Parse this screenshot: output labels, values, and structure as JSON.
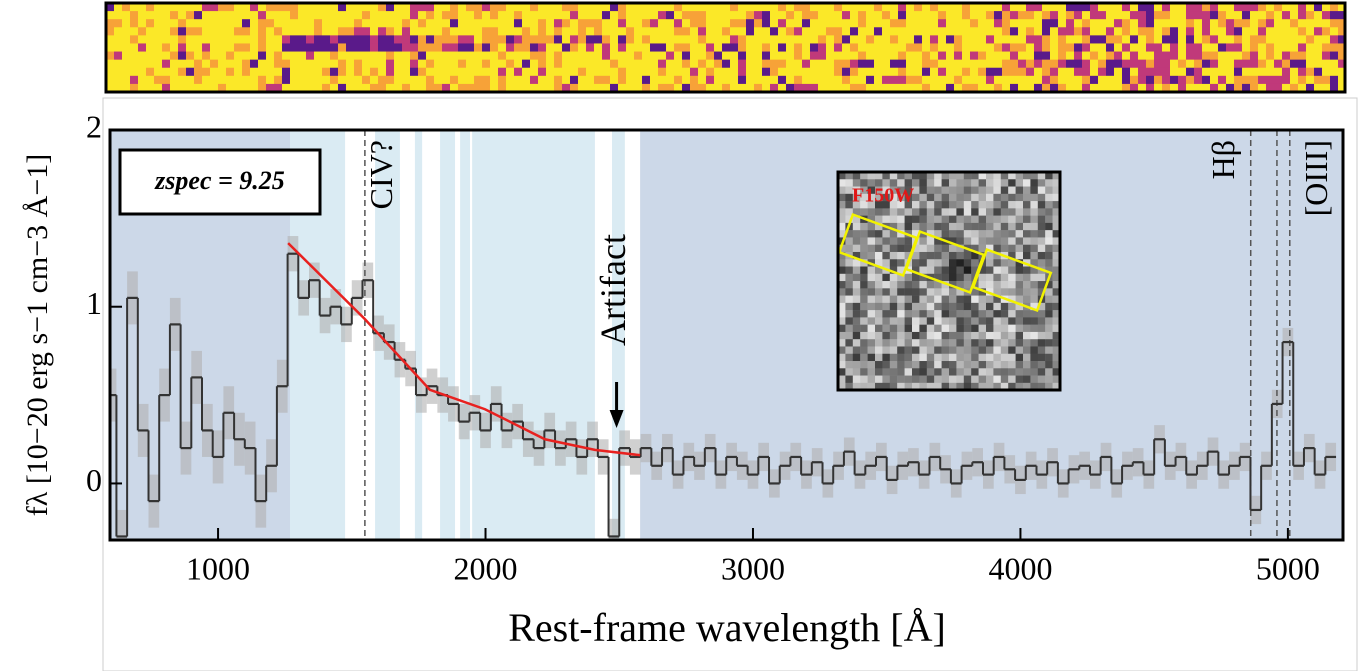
{
  "chart_data": {
    "type": "step",
    "xlabel": "Rest-frame wavelength [Å]",
    "ylabel": "fλ [10−20 erg s−1 cm−3 Å−1]",
    "xlim": [
      596,
      5206
    ],
    "ylim": [
      -0.32,
      2
    ],
    "xticks": [
      1000,
      2000,
      3000,
      4000,
      5000
    ],
    "yticks": [
      0,
      1,
      2
    ],
    "color": "#333333",
    "error_color": "#b0b0b0",
    "x": [
      600,
      640,
      680,
      720,
      760,
      800,
      840,
      880,
      920,
      960,
      1000,
      1040,
      1080,
      1120,
      1160,
      1200,
      1240,
      1280,
      1320,
      1360,
      1400,
      1440,
      1480,
      1520,
      1560,
      1600,
      1640,
      1680,
      1720,
      1760,
      1800,
      1840,
      1880,
      1920,
      1960,
      2000,
      2040,
      2080,
      2120,
      2160,
      2200,
      2240,
      2280,
      2320,
      2360,
      2400,
      2440,
      2480,
      2520,
      2560,
      2600,
      2640,
      2680,
      2720,
      2760,
      2800,
      2840,
      2880,
      2920,
      2960,
      3000,
      3040,
      3080,
      3120,
      3160,
      3200,
      3240,
      3280,
      3320,
      3360,
      3400,
      3440,
      3480,
      3520,
      3560,
      3600,
      3640,
      3680,
      3720,
      3760,
      3800,
      3840,
      3880,
      3920,
      3960,
      4000,
      4040,
      4080,
      4120,
      4160,
      4200,
      4240,
      4280,
      4320,
      4360,
      4400,
      4440,
      4480,
      4520,
      4560,
      4600,
      4640,
      4680,
      4720,
      4760,
      4800,
      4840,
      4880,
      4920,
      4960,
      5000,
      5040,
      5080,
      5120,
      5160
    ],
    "values": [
      0.5,
      -0.3,
      1.05,
      0.3,
      -0.1,
      0.5,
      0.9,
      0.2,
      0.6,
      0.3,
      0.15,
      0.4,
      0.25,
      0.2,
      -0.1,
      0.1,
      0.55,
      1.3,
      1.05,
      1.15,
      0.95,
      1.0,
      0.9,
      1.05,
      1.15,
      0.85,
      0.8,
      0.7,
      0.65,
      0.5,
      0.55,
      0.5,
      0.45,
      0.35,
      0.4,
      0.3,
      0.45,
      0.3,
      0.35,
      0.25,
      0.2,
      0.3,
      0.2,
      0.25,
      0.15,
      0.25,
      0.15,
      -0.3,
      0.2,
      0.15,
      0.2,
      0.1,
      0.2,
      0.05,
      0.15,
      0.1,
      0.2,
      0.05,
      0.15,
      0.1,
      0.05,
      0.15,
      0.0,
      0.1,
      0.15,
      0.05,
      0.12,
      0.0,
      0.1,
      0.18,
      0.05,
      0.1,
      0.15,
      0.02,
      0.1,
      0.12,
      0.05,
      0.15,
      0.08,
      0.0,
      0.1,
      0.12,
      0.05,
      0.15,
      0.08,
      0.02,
      0.1,
      0.05,
      0.12,
      0.0,
      0.08,
      0.1,
      0.05,
      0.15,
      0.0,
      0.1,
      0.12,
      0.05,
      0.25,
      0.1,
      0.15,
      0.05,
      0.1,
      0.18,
      0.05,
      0.1,
      0.15,
      -0.15,
      0.1,
      0.45,
      0.8,
      0.1,
      0.2,
      0.05,
      0.15
    ],
    "errors": [
      0.15,
      0.15,
      0.15,
      0.15,
      0.15,
      0.15,
      0.15,
      0.15,
      0.15,
      0.15,
      0.15,
      0.15,
      0.15,
      0.15,
      0.15,
      0.15,
      0.15,
      0.1,
      0.1,
      0.1,
      0.1,
      0.1,
      0.1,
      0.1,
      0.1,
      0.1,
      0.1,
      0.1,
      0.1,
      0.1,
      0.1,
      0.1,
      0.1,
      0.1,
      0.1,
      0.1,
      0.1,
      0.1,
      0.1,
      0.1,
      0.1,
      0.1,
      0.1,
      0.1,
      0.1,
      0.1,
      0.1,
      0.1,
      0.1,
      0.1,
      0.08,
      0.08,
      0.08,
      0.08,
      0.08,
      0.08,
      0.08,
      0.08,
      0.08,
      0.08,
      0.08,
      0.08,
      0.08,
      0.08,
      0.08,
      0.08,
      0.08,
      0.08,
      0.08,
      0.08,
      0.08,
      0.08,
      0.08,
      0.08,
      0.08,
      0.08,
      0.08,
      0.08,
      0.08,
      0.08,
      0.08,
      0.08,
      0.08,
      0.08,
      0.08,
      0.08,
      0.08,
      0.08,
      0.08,
      0.08,
      0.08,
      0.08,
      0.08,
      0.08,
      0.08,
      0.08,
      0.08,
      0.08,
      0.08,
      0.08,
      0.08,
      0.08,
      0.08,
      0.08,
      0.08,
      0.08,
      0.08,
      0.08,
      0.08,
      0.08,
      0.08,
      0.08,
      0.08,
      0.08,
      0.08
    ],
    "fit": {
      "color": "#e8211f",
      "x": [
        1262,
        1549,
        1792,
        1998,
        2222,
        2409,
        2578
      ],
      "values": [
        1.36,
        0.93,
        0.53,
        0.42,
        0.25,
        0.19,
        0.16
      ]
    },
    "shaded_regions": {
      "dark": {
        "color": "#ccd8e8",
        "ranges": [
          [
            596,
            1269
          ],
          [
            2578,
            5206
          ]
        ]
      },
      "light": {
        "color": "#daebf3",
        "ranges": [
          [
            1269,
            1475
          ],
          [
            1587,
            1680
          ],
          [
            1736,
            1763
          ],
          [
            1830,
            1886
          ],
          [
            1905,
            1942
          ],
          [
            1950,
            2409
          ],
          [
            2473,
            2521
          ]
        ]
      }
    },
    "lines": [
      {
        "x": 1549,
        "label": "CIV?"
      },
      {
        "x": 4861,
        "label": "Hβ"
      },
      {
        "x": 4959
      },
      {
        "x": 5007,
        "label": "[OIII]"
      }
    ],
    "artifact": {
      "x": 2490,
      "label": "Artifact"
    },
    "redshift_label": "zspec = 9.25",
    "inset_label": "F150W"
  }
}
